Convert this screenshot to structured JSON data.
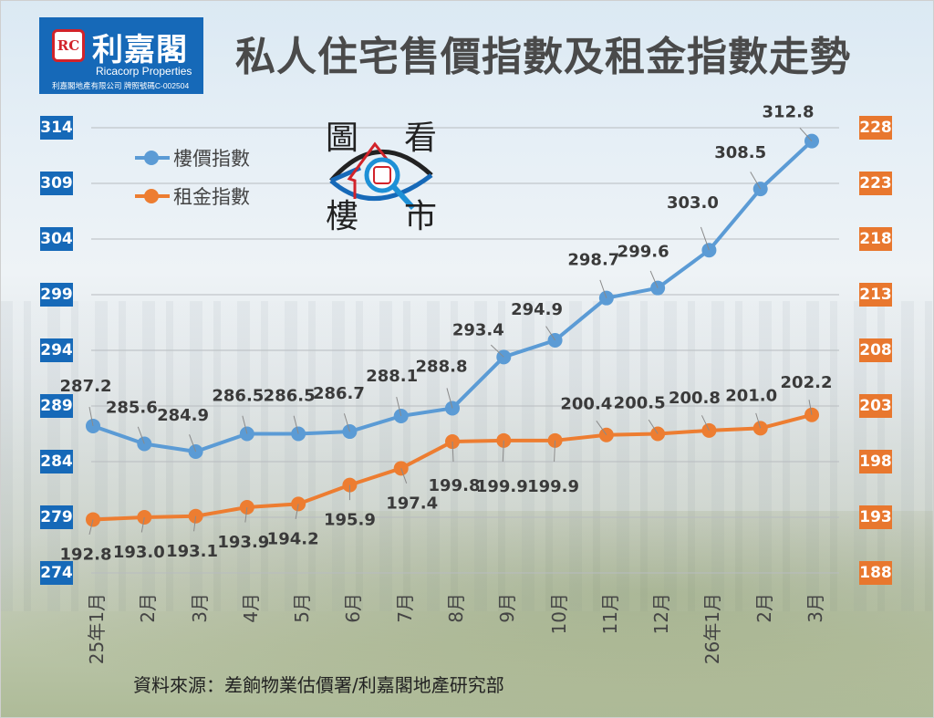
{
  "header": {
    "brand": {
      "logo_mark": "RC",
      "name_cn": "利嘉閣",
      "name_en": "Ricacorp Properties",
      "license": "利嘉閣地產有限公司 牌照號碼C-002504"
    },
    "title": "私人住宅售價指數及租金指數走勢"
  },
  "badge": {
    "chars": [
      "圖",
      "看",
      "樓",
      "市"
    ],
    "mark": "RC"
  },
  "legend": [
    {
      "label": "樓價指數",
      "color": "#5b9bd5"
    },
    {
      "label": "租金指數",
      "color": "#ed7d31"
    }
  ],
  "left_axis": {
    "ticks": [
      "314",
      "309",
      "304",
      "299",
      "294",
      "289",
      "284",
      "279",
      "274"
    ],
    "color": "#1669b8"
  },
  "right_axis": {
    "ticks": [
      "228",
      "223",
      "218",
      "213",
      "208",
      "203",
      "198",
      "193",
      "188"
    ],
    "color": "#e8772e"
  },
  "x_labels": [
    "25年1月",
    "2月",
    "3月",
    "4月",
    "5月",
    "6月",
    "7月",
    "8月",
    "9月",
    "10月",
    "11月",
    "12月",
    "26年1月",
    "2月",
    "3月"
  ],
  "source": "資料來源：差餉物業估價署/利嘉閣地產研究部",
  "chart_data": {
    "type": "line",
    "title": "私人住宅售價指數及租金指數走勢",
    "categories": [
      "25年1月",
      "2月",
      "3月",
      "4月",
      "5月",
      "6月",
      "7月",
      "8月",
      "9月",
      "10月",
      "11月",
      "12月",
      "26年1月",
      "2月",
      "3月"
    ],
    "series": [
      {
        "name": "樓價指數",
        "axis": "left",
        "color": "#5b9bd5",
        "values": [
          287.2,
          285.6,
          284.9,
          286.5,
          286.5,
          286.7,
          288.1,
          288.8,
          293.4,
          294.9,
          298.7,
          299.6,
          303.0,
          308.5,
          312.8
        ]
      },
      {
        "name": "租金指數",
        "axis": "right",
        "color": "#ed7d31",
        "values": [
          192.8,
          193.0,
          193.1,
          193.9,
          194.2,
          195.9,
          197.4,
          199.8,
          199.9,
          199.9,
          200.4,
          200.5,
          200.8,
          201.0,
          202.2
        ]
      }
    ],
    "y_left": {
      "range": [
        274,
        314
      ],
      "ticks": [
        274,
        279,
        284,
        289,
        294,
        299,
        304,
        309,
        314
      ]
    },
    "y_right": {
      "range": [
        188,
        228
      ],
      "ticks": [
        188,
        193,
        198,
        203,
        208,
        213,
        218,
        223,
        228
      ]
    },
    "xlabel": "",
    "ylabel": "",
    "grid": true,
    "legend_position": "top-left",
    "source": "資料來源：差餉物業估價署/利嘉閣地產研究部"
  }
}
